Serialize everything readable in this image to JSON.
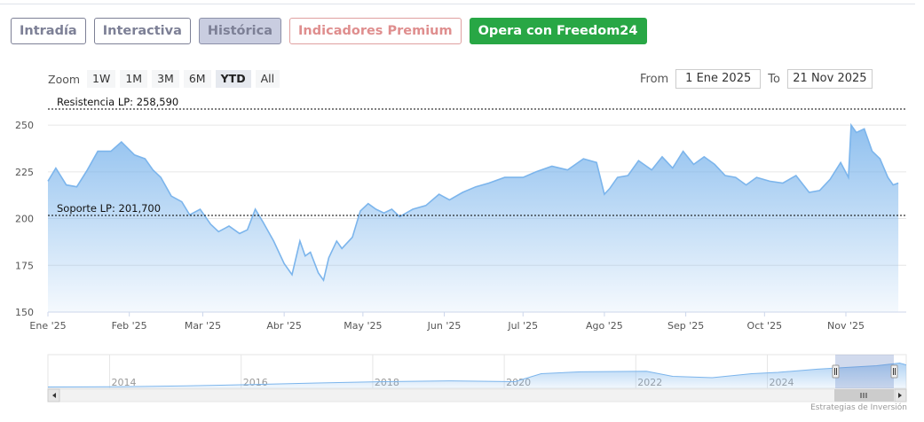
{
  "tabs": [
    {
      "label": "Intradía"
    },
    {
      "label": "Interactiva"
    },
    {
      "label": "Histórica"
    },
    {
      "label": "Indicadores Premium"
    },
    {
      "label": "Opera con Freedom24"
    }
  ],
  "zoom": {
    "label": "Zoom",
    "buttons": [
      "1W",
      "1M",
      "3M",
      "6M",
      "YTD",
      "All"
    ],
    "selected": "YTD"
  },
  "range": {
    "from_label": "From",
    "from_value": "1 Ene 2025",
    "to_label": "To",
    "to_value": "21 Nov 2025"
  },
  "credits": "Estrategias de Inversión",
  "colors": {
    "line": "#7cb5ec",
    "area_top": "#7cb5ec",
    "active_tab": "#c9cde0",
    "cta": "#28a745",
    "premium": "#df8e8e"
  },
  "chart_data": {
    "type": "area",
    "ylim": [
      150,
      260
    ],
    "yticks": [
      150,
      175,
      200,
      225,
      250
    ],
    "xticks": [
      "Ene '25",
      "Feb '25",
      "Mar '25",
      "Abr '25",
      "May '25",
      "Jun '25",
      "Jul '25",
      "Ago '25",
      "Sep '25",
      "Oct '25",
      "Nov '25"
    ],
    "annotations": [
      {
        "label": "Resistencia LP: 258,590",
        "value": 258.59
      },
      {
        "label": "Soporte LP: 201,700",
        "value": 201.7
      }
    ],
    "series": [
      {
        "x": [
          "2025-01-01",
          "2025-01-04",
          "2025-01-08",
          "2025-01-12",
          "2025-01-16",
          "2025-01-20",
          "2025-01-25",
          "2025-01-29",
          "2025-02-03",
          "2025-02-07",
          "2025-02-10",
          "2025-02-13",
          "2025-02-17",
          "2025-02-21",
          "2025-02-24",
          "2025-02-28",
          "2025-03-04",
          "2025-03-07",
          "2025-03-11",
          "2025-03-15",
          "2025-03-18",
          "2025-03-21",
          "2025-03-24",
          "2025-03-28",
          "2025-04-01",
          "2025-04-04",
          "2025-04-07",
          "2025-04-09",
          "2025-04-11",
          "2025-04-14",
          "2025-04-16",
          "2025-04-18",
          "2025-04-21",
          "2025-04-23",
          "2025-04-27",
          "2025-04-30",
          "2025-05-03",
          "2025-05-06",
          "2025-05-09",
          "2025-05-12",
          "2025-05-15",
          "2025-05-20",
          "2025-05-25",
          "2025-05-30",
          "2025-06-03",
          "2025-06-08",
          "2025-06-13",
          "2025-06-18",
          "2025-06-24",
          "2025-07-01",
          "2025-07-06",
          "2025-07-12",
          "2025-07-18",
          "2025-07-24",
          "2025-07-29",
          "2025-08-01",
          "2025-08-03",
          "2025-08-06",
          "2025-08-10",
          "2025-08-14",
          "2025-08-19",
          "2025-08-23",
          "2025-08-27",
          "2025-08-31",
          "2025-09-04",
          "2025-09-08",
          "2025-09-12",
          "2025-09-16",
          "2025-09-20",
          "2025-09-24",
          "2025-09-28",
          "2025-10-03",
          "2025-10-08",
          "2025-10-13",
          "2025-10-18",
          "2025-10-22",
          "2025-10-26",
          "2025-10-30",
          "2025-11-02",
          "2025-11-03",
          "2025-11-05",
          "2025-11-08",
          "2025-11-11",
          "2025-11-14",
          "2025-11-17",
          "2025-11-19",
          "2025-11-21"
        ],
        "y": [
          220,
          227,
          218,
          217,
          226,
          236,
          236,
          241,
          234,
          232,
          226,
          222,
          212,
          209,
          202,
          205,
          197,
          193,
          196,
          192,
          194,
          205,
          198,
          188,
          176,
          170,
          188,
          180,
          182,
          171,
          167,
          179,
          188,
          184,
          190,
          204,
          208,
          205,
          203,
          205,
          201,
          205,
          207,
          213,
          210,
          214,
          217,
          219,
          222,
          222,
          225,
          228,
          226,
          232,
          230,
          213,
          216,
          222,
          223,
          231,
          226,
          233,
          227,
          236,
          229,
          233,
          229,
          223,
          222,
          218,
          222,
          220,
          219,
          223,
          214,
          215,
          221,
          230,
          222,
          250,
          246,
          248,
          236,
          232,
          222,
          218,
          219
        ]
      }
    ],
    "navigator": {
      "ticks": [
        "2014",
        "2016",
        "2018",
        "2020",
        "2022",
        "2024"
      ]
    }
  }
}
